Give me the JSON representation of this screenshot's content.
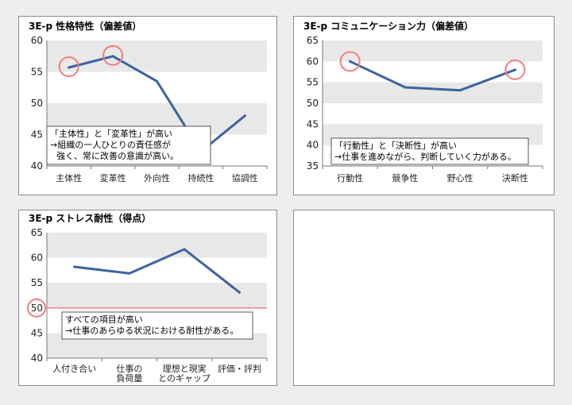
{
  "chart_data": [
    {
      "type": "line",
      "title": "3E-p 性格特性（偏差値）",
      "categories": [
        "主体性",
        "変革性",
        "外向性",
        "持続性",
        "協調性"
      ],
      "values": [
        55.7,
        57.5,
        53.5,
        42.3,
        48.0
      ],
      "ylim": [
        40,
        60
      ],
      "yticks": [
        "60",
        "55",
        "50",
        "45",
        "40"
      ],
      "highlight_indices": [
        0,
        1
      ],
      "annotation": [
        "「主体性」と「変革性」が高い",
        "→組織の一人ひとりの責任感が",
        "強く、常に改善の意識が高い。"
      ]
    },
    {
      "type": "line",
      "title": "3E-p コミュニケーション力（偏差値）",
      "categories": [
        "行動性",
        "競争性",
        "野心性",
        "決断性"
      ],
      "values": [
        60.0,
        53.8,
        53.1,
        58.0
      ],
      "ylim": [
        35,
        65
      ],
      "yticks": [
        "65",
        "60",
        "55",
        "50",
        "45",
        "40",
        "35"
      ],
      "highlight_indices": [
        0,
        3
      ],
      "annotation": [
        "「行動性」と「決断性」が高い",
        "→仕事を進めながら、判断していく力がある。"
      ]
    },
    {
      "type": "line",
      "title": "3E-p ストレス耐性（得点）",
      "categories": [
        [
          "人付き合い"
        ],
        [
          "仕事の",
          "負荷量"
        ],
        [
          "理想と現実",
          "とのギャップ"
        ],
        [
          "評価・評判"
        ]
      ],
      "values": [
        58.2,
        56.9,
        61.7,
        53.1
      ],
      "ylim": [
        40,
        65
      ],
      "yticks": [
        "65",
        "60",
        "55",
        "50",
        "45",
        "40"
      ],
      "reference_line": 50,
      "highlight_tick": "50",
      "annotation": [
        "すべての項目が高い",
        "→仕事のあらゆる状況における耐性がある。"
      ]
    }
  ],
  "colors": {
    "series": "#3c64a0",
    "highlight": "#ef8080",
    "band": "#e8e8e8"
  }
}
